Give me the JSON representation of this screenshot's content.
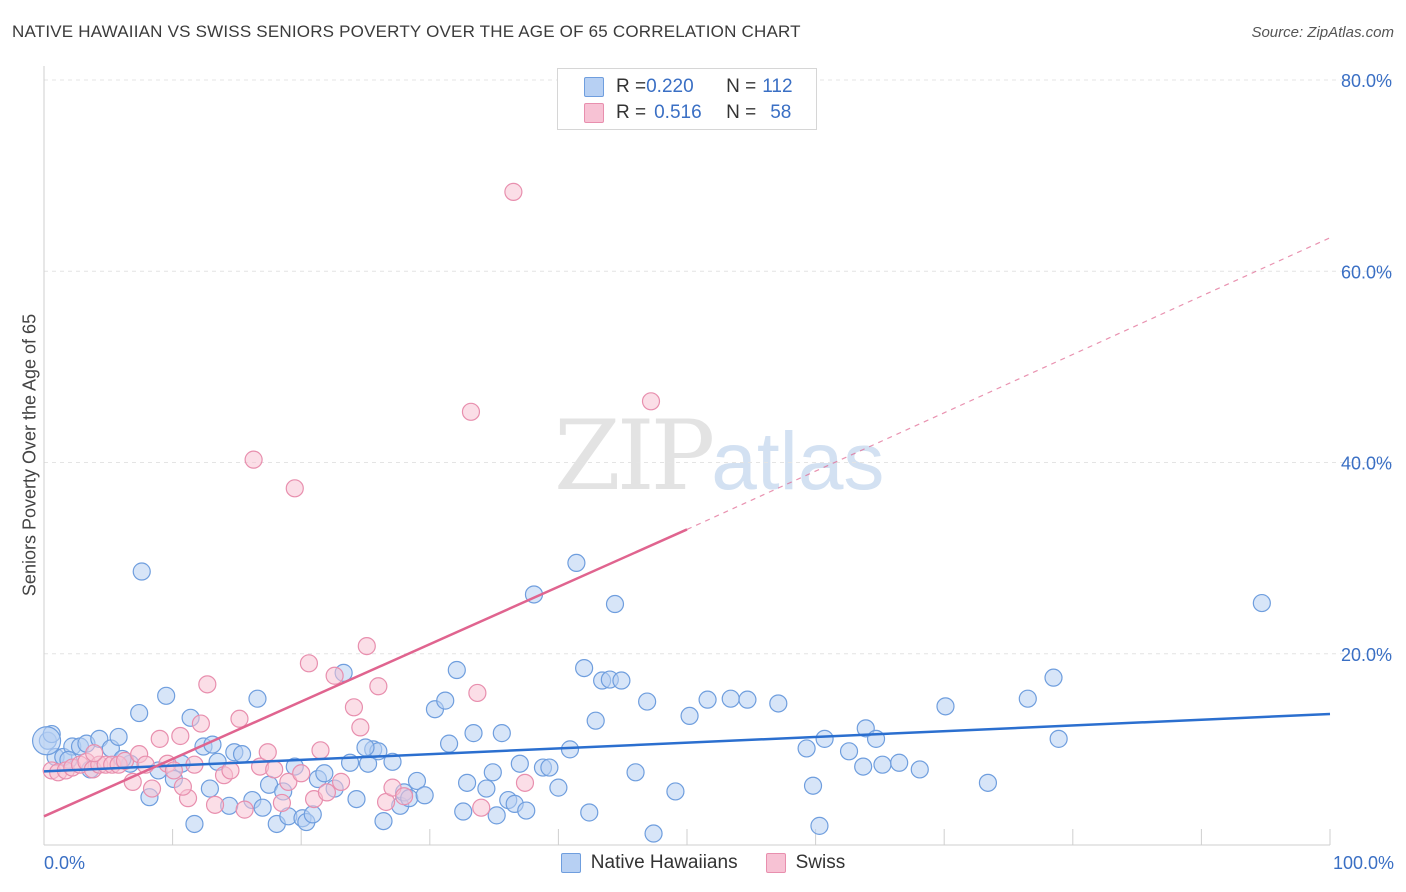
{
  "header": {
    "title": "NATIVE HAWAIIAN VS SWISS SENIORS POVERTY OVER THE AGE OF 65 CORRELATION CHART",
    "source": "Source: ZipAtlas.com"
  },
  "watermark": {
    "zip": "ZIP",
    "atlas": "atlas"
  },
  "legend": {
    "rows": [
      {
        "r_label": "R = ",
        "r_value": "0.220",
        "n_label": "N = ",
        "n_value": "112"
      },
      {
        "r_label": "R = ",
        "r_value": "0.516",
        "n_label": "N = ",
        "n_value": "58"
      }
    ]
  },
  "colors": {
    "blue_fill": "#b7d0f3",
    "blue_stroke": "#6f9ede",
    "blue_line": "#2b6fcf",
    "pink_fill": "#f7c2d4",
    "pink_stroke": "#e88fae",
    "pink_line": "#e0648f",
    "grid": "#e4e4e4",
    "axis_text": "#3a6fc4"
  },
  "chart_data": {
    "type": "scatter",
    "title": "NATIVE HAWAIIAN VS SWISS SENIORS POVERTY OVER THE AGE OF 65 CORRELATION CHART",
    "xlabel": "",
    "ylabel": "Seniors Poverty Over the Age of 65",
    "xlim": [
      0,
      100
    ],
    "ylim": [
      0,
      80
    ],
    "x_tick_labels": [
      "0.0%",
      "100.0%"
    ],
    "y_ticks": [
      20,
      40,
      60,
      80
    ],
    "y_tick_labels": [
      "20.0%",
      "40.0%",
      "60.0%",
      "80.0%"
    ],
    "grid": true,
    "legend_placement": "top-center and bottom",
    "series": [
      {
        "name": "Native Hawaiians",
        "r": 0.22,
        "n": 112,
        "trend": {
          "x": [
            0,
            100
          ],
          "y": [
            7.7,
            13.7
          ]
        },
        "points": [
          [
            0.3,
            10.9
          ],
          [
            0.9,
            9.2
          ],
          [
            1.5,
            9.2
          ],
          [
            2.2,
            10.3
          ],
          [
            2.8,
            10.3
          ],
          [
            3.3,
            10.6
          ],
          [
            4.3,
            11.1
          ],
          [
            5.2,
            10.1
          ],
          [
            5.8,
            11.3
          ],
          [
            6.7,
            8.5
          ],
          [
            7.4,
            13.8
          ],
          [
            7.6,
            28.6
          ],
          [
            8.2,
            5.0
          ],
          [
            8.9,
            7.8
          ],
          [
            9.5,
            15.6
          ],
          [
            10.1,
            6.9
          ],
          [
            10.7,
            8.5
          ],
          [
            11.4,
            13.3
          ],
          [
            11.7,
            2.2
          ],
          [
            12.4,
            10.3
          ],
          [
            12.9,
            5.9
          ],
          [
            13.5,
            8.7
          ],
          [
            14.4,
            4.1
          ],
          [
            14.8,
            9.7
          ],
          [
            15.4,
            9.5
          ],
          [
            16.2,
            4.7
          ],
          [
            16.6,
            15.3
          ],
          [
            17.0,
            3.9
          ],
          [
            17.5,
            6.3
          ],
          [
            18.1,
            2.2
          ],
          [
            18.6,
            5.6
          ],
          [
            19.0,
            3.0
          ],
          [
            19.5,
            8.2
          ],
          [
            20.1,
            2.8
          ],
          [
            20.4,
            2.4
          ],
          [
            20.9,
            3.2
          ],
          [
            21.3,
            6.9
          ],
          [
            21.8,
            7.5
          ],
          [
            22.6,
            5.9
          ],
          [
            23.3,
            18.0
          ],
          [
            23.8,
            8.6
          ],
          [
            24.3,
            4.8
          ],
          [
            25.2,
            8.5
          ],
          [
            25.6,
            10.0
          ],
          [
            26.0,
            9.8
          ],
          [
            26.4,
            2.5
          ],
          [
            27.1,
            8.7
          ],
          [
            27.7,
            4.1
          ],
          [
            28.0,
            5.5
          ],
          [
            28.4,
            4.9
          ],
          [
            29.0,
            6.7
          ],
          [
            29.6,
            5.2
          ],
          [
            30.4,
            14.2
          ],
          [
            31.2,
            15.1
          ],
          [
            31.5,
            10.6
          ],
          [
            32.1,
            18.3
          ],
          [
            32.6,
            3.5
          ],
          [
            32.9,
            6.5
          ],
          [
            33.4,
            11.7
          ],
          [
            34.4,
            5.9
          ],
          [
            34.9,
            7.6
          ],
          [
            35.2,
            3.1
          ],
          [
            35.6,
            11.7
          ],
          [
            36.1,
            4.7
          ],
          [
            36.6,
            4.3
          ],
          [
            37.0,
            8.5
          ],
          [
            37.5,
            3.6
          ],
          [
            38.1,
            26.2
          ],
          [
            38.8,
            8.1
          ],
          [
            39.3,
            8.1
          ],
          [
            40.0,
            6.0
          ],
          [
            40.9,
            10.0
          ],
          [
            41.4,
            29.5
          ],
          [
            42.0,
            18.5
          ],
          [
            42.4,
            3.4
          ],
          [
            42.9,
            13.0
          ],
          [
            43.4,
            17.2
          ],
          [
            44.0,
            17.3
          ],
          [
            44.4,
            25.2
          ],
          [
            44.9,
            17.2
          ],
          [
            46.0,
            7.6
          ],
          [
            46.9,
            15.0
          ],
          [
            47.4,
            1.2
          ],
          [
            49.1,
            5.6
          ],
          [
            50.2,
            13.5
          ],
          [
            51.6,
            15.2
          ],
          [
            53.4,
            15.3
          ],
          [
            54.7,
            15.2
          ],
          [
            57.1,
            14.8
          ],
          [
            59.3,
            10.1
          ],
          [
            59.8,
            6.2
          ],
          [
            60.3,
            2.0
          ],
          [
            60.7,
            11.1
          ],
          [
            62.6,
            9.8
          ],
          [
            63.7,
            8.2
          ],
          [
            63.9,
            12.2
          ],
          [
            64.7,
            11.1
          ],
          [
            65.2,
            8.4
          ],
          [
            66.5,
            8.6
          ],
          [
            68.1,
            7.9
          ],
          [
            70.1,
            14.5
          ],
          [
            73.4,
            6.5
          ],
          [
            76.5,
            15.3
          ],
          [
            78.5,
            17.5
          ],
          [
            78.9,
            11.1
          ],
          [
            94.7,
            25.3
          ],
          [
            0.6,
            11.6
          ],
          [
            1.9,
            8.9
          ],
          [
            3.6,
            7.9
          ],
          [
            6.1,
            9.0
          ],
          [
            13.1,
            10.5
          ],
          [
            25.0,
            10.2
          ]
        ]
      },
      {
        "name": "Swiss",
        "r": 0.516,
        "n": 58,
        "trend": {
          "x": [
            0,
            50
          ],
          "y": [
            3.0,
            33.0
          ]
        },
        "trend_extension": {
          "x": [
            50,
            100
          ],
          "y": [
            33.0,
            63.5
          ]
        },
        "points": [
          [
            0.6,
            7.8
          ],
          [
            1.1,
            7.6
          ],
          [
            1.7,
            7.8
          ],
          [
            2.2,
            8.1
          ],
          [
            2.8,
            8.4
          ],
          [
            3.3,
            8.7
          ],
          [
            3.8,
            7.9
          ],
          [
            4.3,
            8.4
          ],
          [
            4.8,
            8.4
          ],
          [
            5.3,
            8.4
          ],
          [
            5.8,
            8.4
          ],
          [
            6.3,
            8.8
          ],
          [
            6.9,
            6.6
          ],
          [
            7.4,
            9.5
          ],
          [
            7.9,
            8.4
          ],
          [
            8.4,
            5.9
          ],
          [
            9.0,
            11.1
          ],
          [
            9.6,
            8.5
          ],
          [
            10.1,
            7.8
          ],
          [
            10.6,
            11.4
          ],
          [
            11.2,
            4.9
          ],
          [
            11.7,
            8.4
          ],
          [
            12.2,
            12.7
          ],
          [
            12.7,
            16.8
          ],
          [
            13.3,
            4.2
          ],
          [
            14.0,
            7.3
          ],
          [
            14.5,
            7.8
          ],
          [
            15.2,
            13.2
          ],
          [
            15.6,
            3.7
          ],
          [
            16.3,
            40.3
          ],
          [
            16.8,
            8.2
          ],
          [
            17.4,
            9.7
          ],
          [
            17.9,
            7.9
          ],
          [
            18.5,
            4.4
          ],
          [
            19.0,
            6.6
          ],
          [
            19.5,
            37.3
          ],
          [
            20.0,
            7.5
          ],
          [
            20.6,
            19.0
          ],
          [
            21.0,
            4.8
          ],
          [
            21.5,
            9.9
          ],
          [
            22.0,
            5.5
          ],
          [
            22.6,
            17.7
          ],
          [
            23.1,
            6.6
          ],
          [
            24.1,
            14.4
          ],
          [
            24.6,
            12.3
          ],
          [
            25.1,
            20.8
          ],
          [
            26.0,
            16.6
          ],
          [
            26.6,
            4.5
          ],
          [
            27.1,
            6.0
          ],
          [
            28.0,
            5.1
          ],
          [
            33.2,
            45.3
          ],
          [
            33.7,
            15.9
          ],
          [
            34.0,
            3.9
          ],
          [
            36.5,
            68.3
          ],
          [
            37.4,
            6.5
          ],
          [
            47.2,
            46.4
          ],
          [
            10.8,
            6.1
          ],
          [
            3.9,
            9.6
          ]
        ]
      }
    ]
  }
}
